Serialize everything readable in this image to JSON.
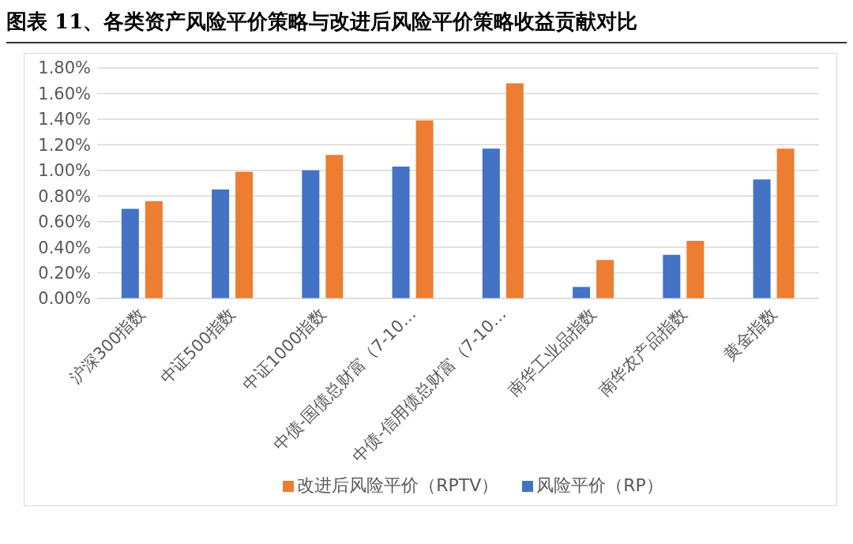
{
  "chart_data": {
    "type": "bar",
    "title": "图表 11、各类资产风险平价策略与改进后风险平价策略收益贡献对比",
    "categories": [
      "沪深300指数",
      "中证500指数",
      "中证1000指数",
      "中债-国债总财富（7-10…",
      "中债-信用债总财富（7-10…",
      "南华工业品指数",
      "南华农产品指数",
      "黄金指数"
    ],
    "series": [
      {
        "name": "风险平价（RP）",
        "color": "#4472c4",
        "values": [
          0.7,
          0.85,
          1.0,
          1.03,
          1.17,
          0.09,
          0.34,
          0.93
        ]
      },
      {
        "name": "改进后风险平价（RPTV）",
        "color": "#ed7d31",
        "values": [
          0.76,
          0.99,
          1.12,
          1.39,
          1.68,
          0.3,
          0.45,
          1.17
        ]
      }
    ],
    "ylim": [
      0,
      1.8
    ],
    "yticks": [
      {
        "value": 0,
        "label": "0.00%"
      },
      {
        "value": 0.2,
        "label": "0.20%"
      },
      {
        "value": 0.4,
        "label": "0.40%"
      },
      {
        "value": 0.6,
        "label": "0.60%"
      },
      {
        "value": 0.8,
        "label": "0.80%"
      },
      {
        "value": 1.0,
        "label": "1.00%"
      },
      {
        "value": 1.2,
        "label": "1.20%"
      },
      {
        "value": 1.4,
        "label": "1.40%"
      },
      {
        "value": 1.6,
        "label": "1.60%"
      },
      {
        "value": 1.8,
        "label": "1.80%"
      }
    ],
    "grid": "y",
    "legend": "bottom"
  }
}
